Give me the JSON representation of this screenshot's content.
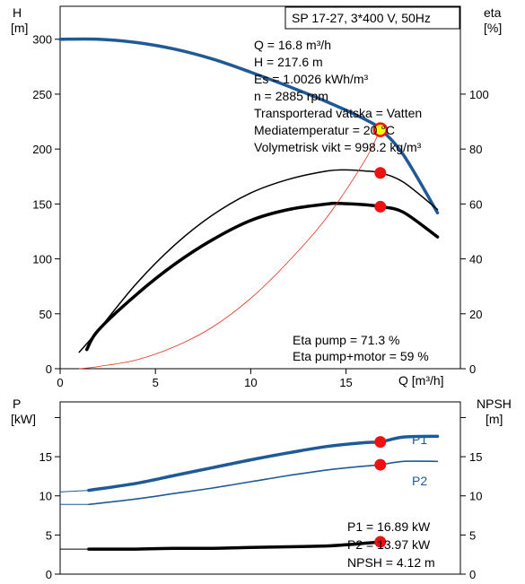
{
  "header": {
    "model": "SP 17-27, 3*400 V, 50Hz"
  },
  "colors": {
    "head": "#1f5a96",
    "eta": "#000000",
    "system": "#e03020",
    "marker": "#ee1111",
    "dutyFill": "#ffff00",
    "p1": "#1f5a96",
    "p2": "#1f5a96",
    "npsh": "#000000"
  },
  "info": {
    "q": "Q = 16.8 m³/h",
    "h": "H = 217.6 m",
    "es": "Es = 1.0026 kWh/m³",
    "n": "n = 2885 rpm",
    "liquid": "Transporterad vätska = Vatten",
    "temp": "Mediatemperatur = 20 °C",
    "density": "Volymetrisk vikt = 998.2 kg/m³",
    "eta_pump": "Eta pump = 71.3 %",
    "eta_total": "Eta pump+motor = 59 %",
    "p1": "P1 = 16.89 kW",
    "p2": "P2 = 13.97 kW",
    "npsh": "NPSH = 4.12 m"
  },
  "chart_data": [
    {
      "type": "line",
      "xlabel": "Q [m³/h]",
      "ylabel": "H\n[m]",
      "y2label": "eta\n[%]",
      "xlim": [
        0,
        21
      ],
      "ylim": [
        0,
        330
      ],
      "y2lim": [
        0,
        132
      ],
      "xticks": [
        0,
        5,
        10,
        15
      ],
      "yticks": [
        0,
        50,
        100,
        150,
        200,
        250,
        300
      ],
      "y2ticks": [
        0,
        20,
        40,
        60,
        80,
        100
      ],
      "series": [
        {
          "key": "head",
          "axis": "y",
          "x": [
            0,
            2,
            4,
            6,
            8,
            10,
            12,
            14,
            16,
            16.8,
            18,
            19.8
          ],
          "values": [
            300,
            300,
            297,
            291,
            282,
            270,
            257,
            243,
            227,
            218,
            195,
            142
          ]
        },
        {
          "key": "eta_pump",
          "axis": "y2",
          "x": [
            1,
            2,
            4,
            6,
            8,
            10,
            12,
            14,
            15,
            16,
            16.8,
            18,
            19.8
          ],
          "values": [
            6,
            14,
            31,
            45,
            56,
            64,
            69,
            72,
            72.4,
            72,
            71.3,
            68,
            58
          ]
        },
        {
          "key": "eta_total",
          "axis": "y2",
          "x": [
            1.4,
            2,
            4,
            6,
            8,
            10,
            12,
            14,
            14.6,
            16,
            16.8,
            18,
            19.8
          ],
          "values": [
            7,
            14,
            27,
            38,
            47,
            54,
            58,
            60,
            60.2,
            59.7,
            59,
            57,
            48
          ]
        },
        {
          "key": "system",
          "axis": "y",
          "x": [
            1,
            2,
            4,
            6,
            8,
            10,
            12,
            14,
            16,
            16.8
          ],
          "values": [
            0,
            2,
            8,
            20,
            38,
            64,
            98,
            138,
            190,
            218
          ]
        }
      ],
      "markers": [
        {
          "axis": "y",
          "x": 16.8,
          "value": 217.6,
          "duty": true
        },
        {
          "axis": "y2",
          "x": 16.8,
          "value": 71.3
        },
        {
          "axis": "y2",
          "x": 16.8,
          "value": 59
        }
      ]
    },
    {
      "type": "line",
      "ylabel": "P\n[kW]",
      "y2label": "NPSH\n[m]",
      "xlim": [
        0,
        21
      ],
      "ylim": [
        0,
        22
      ],
      "y2lim": [
        0,
        22
      ],
      "yticks": [
        0,
        5,
        10,
        15
      ],
      "y2ticks": [
        0,
        5,
        10,
        15
      ],
      "series": [
        {
          "key": "p1",
          "name": "P1",
          "axis": "y",
          "x": [
            0,
            1.5,
            4,
            6,
            8,
            10,
            12,
            14,
            16,
            16.8,
            18,
            19.8
          ],
          "values": [
            10.5,
            10.7,
            11.6,
            12.6,
            13.6,
            14.6,
            15.5,
            16.3,
            16.8,
            16.89,
            17.5,
            17.6
          ]
        },
        {
          "key": "p2",
          "name": "P2",
          "axis": "y",
          "x": [
            0,
            1.5,
            4,
            6,
            8,
            10,
            12,
            14,
            16,
            16.8,
            18,
            19.8
          ],
          "values": [
            8.9,
            8.9,
            9.6,
            10.3,
            11.0,
            11.8,
            12.6,
            13.3,
            13.8,
            13.97,
            14.4,
            14.4
          ]
        },
        {
          "key": "npsh",
          "axis": "y2",
          "x": [
            0,
            1.5,
            4,
            6,
            8,
            10,
            12,
            14,
            15,
            16,
            16.8
          ],
          "values": [
            3.2,
            3.2,
            3.2,
            3.3,
            3.3,
            3.4,
            3.5,
            3.6,
            3.75,
            3.95,
            4.12
          ]
        }
      ],
      "markers": [
        {
          "axis": "y",
          "x": 16.8,
          "value": 16.89
        },
        {
          "axis": "y",
          "x": 16.8,
          "value": 13.97
        },
        {
          "axis": "y2",
          "x": 16.8,
          "value": 4.12
        }
      ]
    }
  ]
}
